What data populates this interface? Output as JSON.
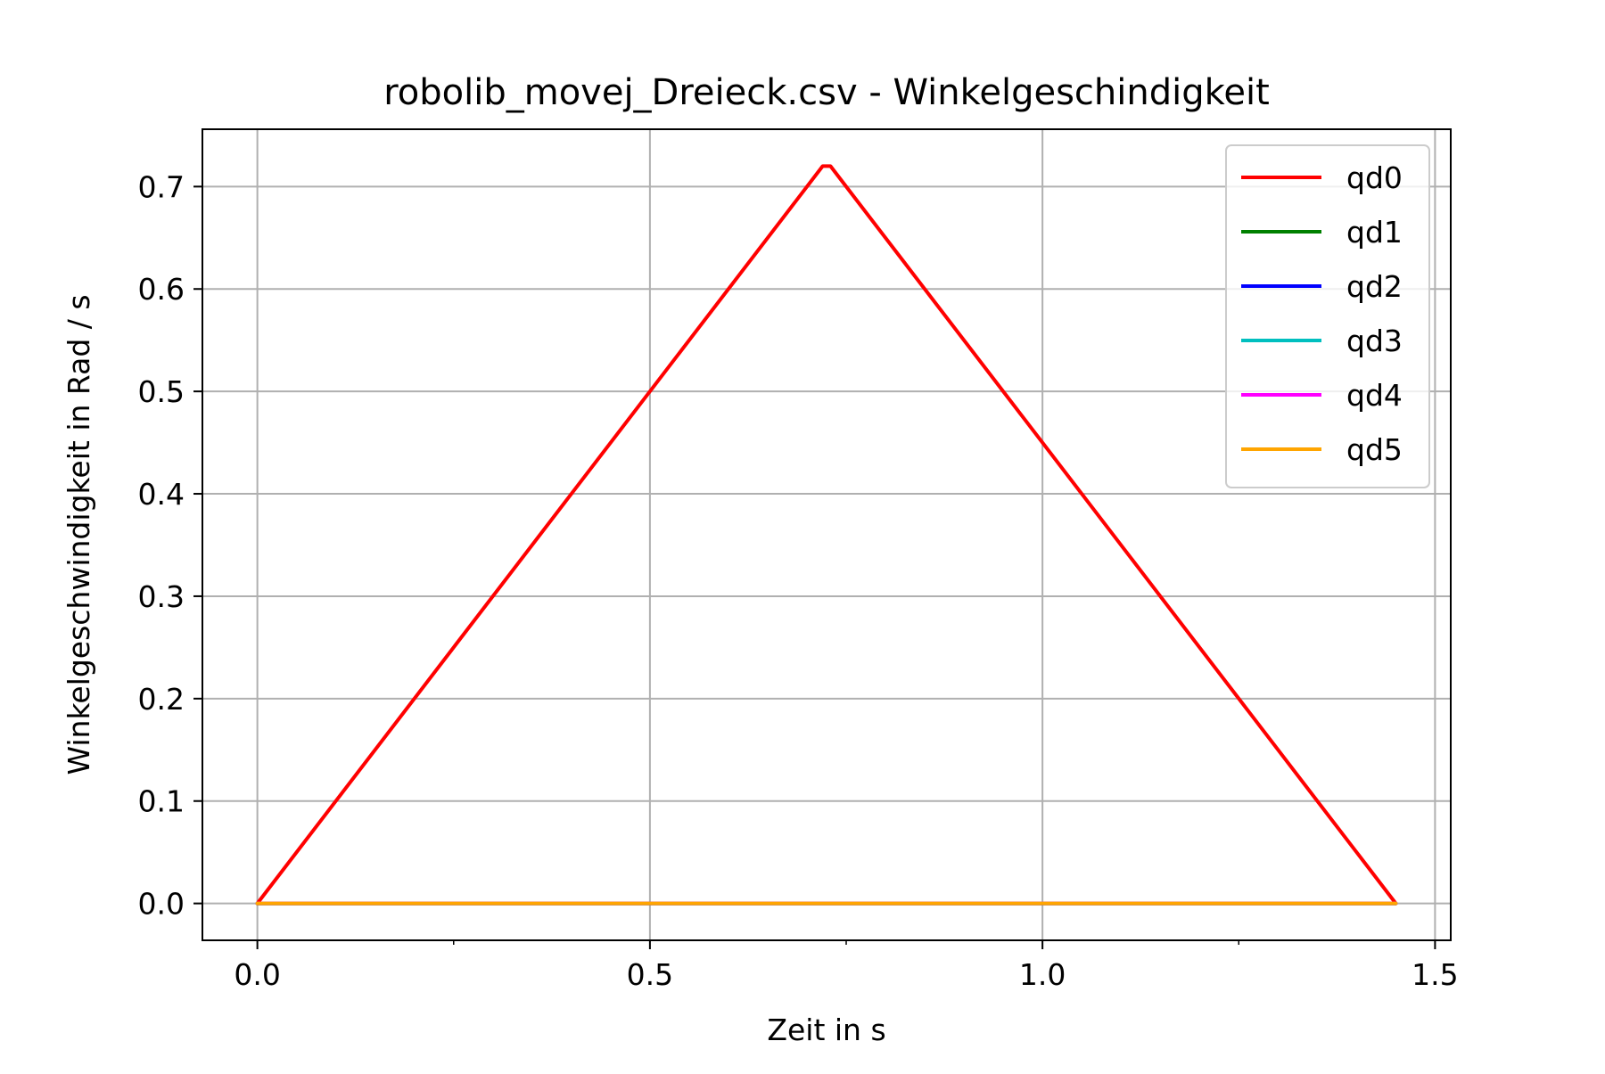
{
  "chart_data": {
    "type": "line",
    "title": "robolib_movej_Dreieck.csv - Winkelgeschindigkeit",
    "xlabel": "Zeit in s",
    "ylabel": "Winkelgeschwindigkeit in Rad / s",
    "xlim": [
      -0.07,
      1.52
    ],
    "ylim": [
      -0.036,
      0.756
    ],
    "xticks": [
      0.0,
      0.5,
      1.0,
      1.5
    ],
    "xtick_labels": [
      "0.0",
      "0.5",
      "1.0",
      "1.5"
    ],
    "x_minor_ticks": [
      0.25,
      0.75,
      1.25
    ],
    "yticks": [
      0.0,
      0.1,
      0.2,
      0.3,
      0.4,
      0.5,
      0.6,
      0.7
    ],
    "ytick_labels": [
      "0.0",
      "0.1",
      "0.2",
      "0.3",
      "0.4",
      "0.5",
      "0.6",
      "0.7"
    ],
    "grid": true,
    "legend_position": "top-right",
    "series": [
      {
        "name": "qd0",
        "color": "#ff0000",
        "x": [
          0.0,
          0.72,
          0.73,
          1.45
        ],
        "y": [
          0.0,
          0.72,
          0.72,
          0.0
        ]
      },
      {
        "name": "qd1",
        "color": "#008000",
        "x": [
          0.0,
          1.45
        ],
        "y": [
          0.0,
          0.0
        ]
      },
      {
        "name": "qd2",
        "color": "#0000ff",
        "x": [
          0.0,
          1.45
        ],
        "y": [
          0.0,
          0.0
        ]
      },
      {
        "name": "qd3",
        "color": "#00bfbf",
        "x": [
          0.0,
          1.45
        ],
        "y": [
          0.0,
          0.0
        ]
      },
      {
        "name": "qd4",
        "color": "#ff00ff",
        "x": [
          0.0,
          1.45
        ],
        "y": [
          0.0,
          0.0
        ]
      },
      {
        "name": "qd5",
        "color": "#ffa500",
        "x": [
          0.0,
          1.45
        ],
        "y": [
          0.0,
          0.0
        ]
      }
    ]
  }
}
